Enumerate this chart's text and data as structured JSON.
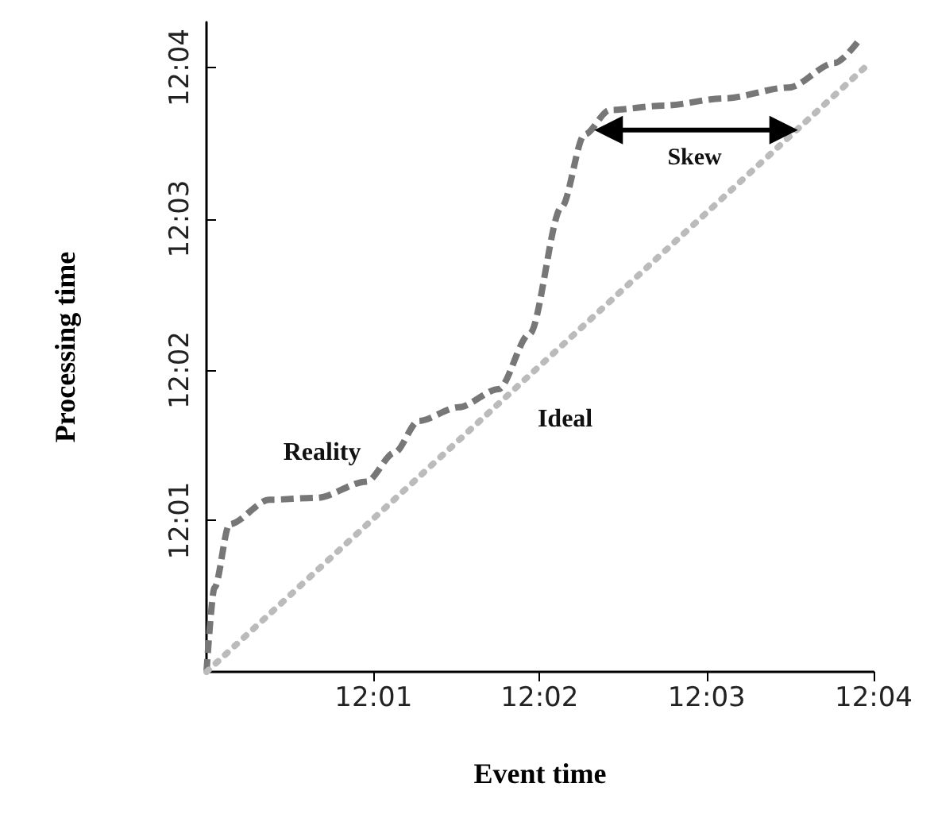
{
  "chart_data": {
    "type": "line",
    "xlabel": "Event time",
    "ylabel": "Processing time",
    "xlim": [
      12,
      12.0667
    ],
    "ylim": [
      12,
      12.0717
    ],
    "xticks": [
      {
        "value": 12.0167,
        "label": "12:01"
      },
      {
        "value": 12.0333,
        "label": "12:02"
      },
      {
        "value": 12.05,
        "label": "12:03"
      },
      {
        "value": 12.0667,
        "label": "12:04"
      }
    ],
    "yticks": [
      {
        "value": 12.0167,
        "label": "12:01"
      },
      {
        "value": 12.0333,
        "label": "12:02"
      },
      {
        "value": 12.05,
        "label": "12:03"
      },
      {
        "value": 12.0667,
        "label": "12:04"
      }
    ],
    "series": [
      {
        "name": "Reality",
        "color": "#777777",
        "line_style": "dashed",
        "x": [
          12,
          12.0008,
          12.0023,
          12.0063,
          12.011,
          12.016,
          12.0188,
          12.0212,
          12.0252,
          12.0292,
          12.0323,
          12.0355,
          12.0378,
          12.0403,
          12.0457,
          12.0518,
          12.0582,
          12.0628,
          12.0653
        ],
        "values": [
          12,
          12.0093,
          12.0163,
          12.019,
          12.0192,
          12.021,
          12.0242,
          12.0277,
          12.0292,
          12.0312,
          12.0373,
          12.0513,
          12.0593,
          12.062,
          12.0625,
          12.0633,
          12.0645,
          12.0672,
          12.0698
        ]
      },
      {
        "name": "Ideal",
        "color": "#bbbbbb",
        "line_style": "dotted",
        "x": [
          12,
          12.0658
        ],
        "values": [
          12,
          12.0667
        ]
      },
      {
        "color": "#000000",
        "line_style": "solid",
        "marker": "triangle",
        "x": [
          12.0402,
          12.0577
        ],
        "values": [
          12.0598,
          12.0598
        ]
      }
    ],
    "annotations": [
      {
        "text": "Skew",
        "x": 12.0488,
        "y": 12.0598
      }
    ],
    "grid": false,
    "legend": false
  }
}
